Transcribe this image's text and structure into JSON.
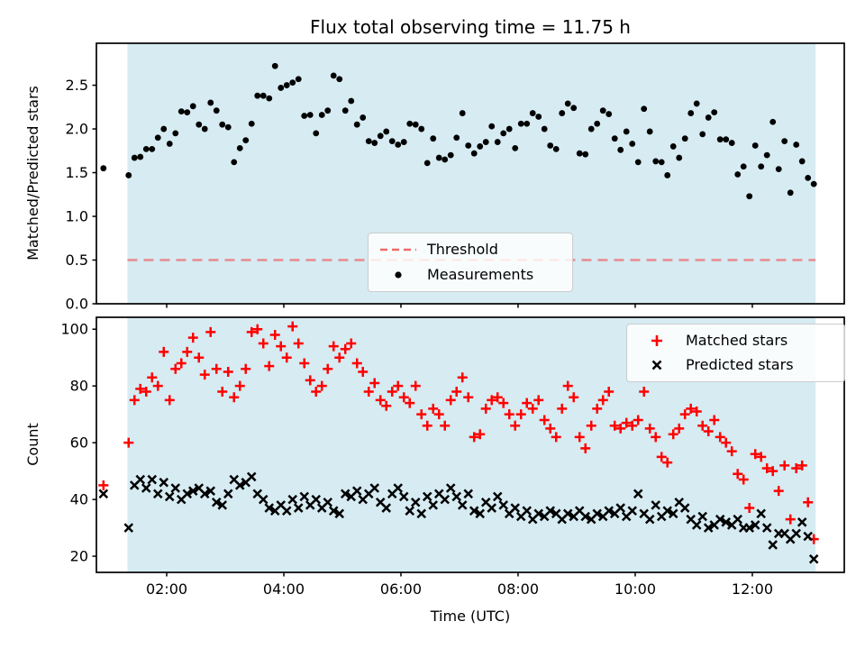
{
  "figure": {
    "title": "Flux total observing time = 11.75 h",
    "xlabel": "Time (UTC)",
    "colors": {
      "shade": "#add8e6",
      "threshold": "#ef6a6a",
      "matched": "#ff0000",
      "predicted": "#000000",
      "measurements": "#000000"
    }
  },
  "times_utc_hours": [
    0.92,
    1.35,
    1.45,
    1.55,
    1.65,
    1.75,
    1.85,
    1.95,
    2.05,
    2.15,
    2.25,
    2.35,
    2.45,
    2.55,
    2.65,
    2.75,
    2.85,
    2.95,
    3.05,
    3.15,
    3.25,
    3.35,
    3.45,
    3.55,
    3.65,
    3.75,
    3.85,
    3.95,
    4.05,
    4.15,
    4.25,
    4.35,
    4.45,
    4.55,
    4.65,
    4.75,
    4.85,
    4.95,
    5.05,
    5.15,
    5.25,
    5.35,
    5.45,
    5.55,
    5.65,
    5.75,
    5.85,
    5.95,
    6.05,
    6.15,
    6.25,
    6.35,
    6.45,
    6.55,
    6.65,
    6.75,
    6.85,
    6.95,
    7.05,
    7.15,
    7.25,
    7.35,
    7.45,
    7.55,
    7.65,
    7.75,
    7.85,
    7.95,
    8.05,
    8.15,
    8.25,
    8.35,
    8.45,
    8.55,
    8.65,
    8.75,
    8.85,
    8.95,
    9.05,
    9.15,
    9.25,
    9.35,
    9.45,
    9.55,
    9.65,
    9.75,
    9.85,
    9.95,
    10.05,
    10.15,
    10.25,
    10.35,
    10.45,
    10.55,
    10.65,
    10.75,
    10.85,
    10.95,
    11.05,
    11.15,
    11.25,
    11.35,
    11.45,
    11.55,
    11.65,
    11.75,
    11.85,
    11.95,
    12.05,
    12.15,
    12.25,
    12.35,
    12.45,
    12.55,
    12.65,
    12.75,
    12.85,
    12.95,
    13.05
  ],
  "chart_data": [
    {
      "type": "scatter",
      "title": "Flux total observing time = 11.75 h",
      "ylabel": "Matched/Predicted stars",
      "xlim": [
        0.8,
        13.57
      ],
      "ylim": [
        0,
        2.98
      ],
      "ytick_values": [
        0,
        0.5,
        1,
        1.5,
        2,
        2.5
      ],
      "ytick_labels": [
        "0.0",
        "0.5",
        "1.0",
        "1.5",
        "2.0",
        "2.5"
      ],
      "xtick_values": [
        2,
        4,
        6,
        8,
        10,
        12
      ],
      "xtick_labels": [],
      "grid": false,
      "shade_span_hours": [
        1.33,
        13.08
      ],
      "threshold": {
        "label": "Threshold",
        "value": 0.5
      },
      "legend": {
        "position": "lower-center",
        "entries": [
          {
            "label": "Threshold",
            "marker": "dashed-line",
            "color": "#ef6a6a"
          },
          {
            "label": "Measurements",
            "marker": "dot",
            "color": "#000000"
          }
        ]
      },
      "series": [
        {
          "name": "Measurements",
          "marker": "dot",
          "color": "#000000",
          "y": [
            1.55,
            1.47,
            1.67,
            1.68,
            1.77,
            1.77,
            1.9,
            2.0,
            1.83,
            1.95,
            2.2,
            2.19,
            2.26,
            2.05,
            2.0,
            2.3,
            2.21,
            2.05,
            2.02,
            1.62,
            1.78,
            1.87,
            2.06,
            2.38,
            2.38,
            2.35,
            2.72,
            2.47,
            2.5,
            2.53,
            2.57,
            2.15,
            2.16,
            1.95,
            2.16,
            2.21,
            2.61,
            2.57,
            2.21,
            2.32,
            2.05,
            2.13,
            1.86,
            1.84,
            1.92,
            1.97,
            1.86,
            1.82,
            1.85,
            2.06,
            2.05,
            2.0,
            1.61,
            1.89,
            1.67,
            1.65,
            1.7,
            1.9,
            2.18,
            1.81,
            1.72,
            1.8,
            1.85,
            2.03,
            1.85,
            1.95,
            2.0,
            1.78,
            2.06,
            2.06,
            2.18,
            2.14,
            2.0,
            1.81,
            1.77,
            2.18,
            2.29,
            2.24,
            1.72,
            1.71,
            2.0,
            2.06,
            2.21,
            2.17,
            1.89,
            1.76,
            1.97,
            1.83,
            1.62,
            2.23,
            1.97,
            1.63,
            1.62,
            1.47,
            1.8,
            1.67,
            1.89,
            2.18,
            2.29,
            1.94,
            2.13,
            2.19,
            1.88,
            1.88,
            1.84,
            1.48,
            1.57,
            1.23,
            1.81,
            1.57,
            1.7,
            2.08,
            1.54,
            1.86,
            1.27,
            1.82,
            1.63,
            1.44,
            1.37
          ]
        }
      ]
    },
    {
      "type": "scatter",
      "ylabel": "Count",
      "xlabel": "Time (UTC)",
      "xlim": [
        0.8,
        13.57
      ],
      "ylim": [
        14.3,
        104.2
      ],
      "ytick_values": [
        20,
        40,
        60,
        80,
        100
      ],
      "ytick_labels": [
        "20",
        "40",
        "60",
        "80",
        "100"
      ],
      "xtick_values": [
        2,
        4,
        6,
        8,
        10,
        12
      ],
      "xtick_labels": [
        "02:00",
        "04:00",
        "06:00",
        "08:00",
        "10:00",
        "12:00"
      ],
      "grid": false,
      "shade_span_hours": [
        1.33,
        13.08
      ],
      "legend": {
        "position": "upper-right",
        "entries": [
          {
            "label": "Matched stars",
            "marker": "plus",
            "color": "#ff0000"
          },
          {
            "label": "Predicted stars",
            "marker": "x",
            "color": "#000000"
          }
        ]
      },
      "series": [
        {
          "name": "Matched stars",
          "marker": "plus",
          "color": "#ff0000",
          "y": [
            45,
            60,
            75,
            79,
            78,
            83,
            80,
            92,
            75,
            86,
            88,
            92,
            97,
            90,
            84,
            99,
            86,
            78,
            85,
            76,
            80,
            86,
            99,
            100,
            95,
            87,
            98,
            94,
            90,
            101,
            95,
            88,
            82,
            78,
            80,
            86,
            94,
            90,
            93,
            95,
            88,
            85,
            78,
            81,
            75,
            73,
            78,
            80,
            76,
            74,
            80,
            70,
            66,
            72,
            70,
            66,
            75,
            78,
            83,
            76,
            62,
            63,
            72,
            75,
            76,
            74,
            70,
            66,
            70,
            74,
            72,
            75,
            68,
            65,
            62,
            72,
            80,
            76,
            62,
            58,
            66,
            72,
            75,
            78,
            66,
            65,
            67,
            66,
            68,
            78,
            65,
            62,
            55,
            53,
            63,
            65,
            70,
            72,
            71,
            66,
            64,
            68,
            62,
            60,
            57,
            49,
            47,
            37,
            56,
            55,
            51,
            50,
            43,
            52,
            33,
            51,
            52,
            39,
            26
          ]
        },
        {
          "name": "Predicted stars",
          "marker": "x",
          "color": "#000000",
          "y": [
            42,
            30,
            45,
            47,
            44,
            47,
            42,
            46,
            41,
            44,
            40,
            42,
            43,
            44,
            42,
            43,
            39,
            38,
            42,
            47,
            45,
            46,
            48,
            42,
            40,
            37,
            36,
            38,
            36,
            40,
            37,
            41,
            38,
            40,
            37,
            39,
            36,
            35,
            42,
            41,
            43,
            40,
            42,
            44,
            39,
            37,
            42,
            44,
            41,
            36,
            39,
            35,
            41,
            38,
            42,
            40,
            44,
            41,
            38,
            42,
            36,
            35,
            39,
            37,
            41,
            38,
            35,
            37,
            34,
            36,
            33,
            35,
            34,
            36,
            35,
            33,
            35,
            34,
            36,
            34,
            33,
            35,
            34,
            36,
            35,
            37,
            34,
            36,
            42,
            35,
            33,
            38,
            34,
            36,
            35,
            39,
            37,
            33,
            31,
            34,
            30,
            31,
            33,
            32,
            31,
            33,
            30,
            30,
            31,
            35,
            30,
            24,
            28,
            28,
            26,
            28,
            32,
            27,
            19
          ]
        }
      ]
    }
  ]
}
